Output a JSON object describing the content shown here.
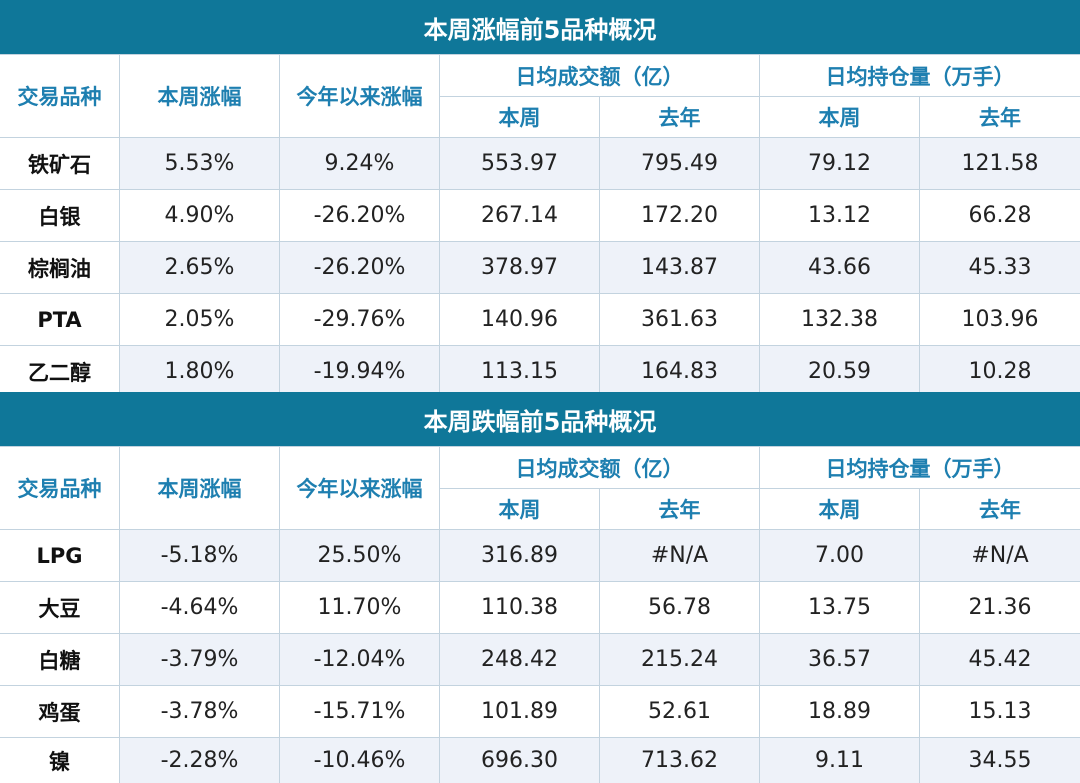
{
  "sections": [
    {
      "title": "本周涨幅前5品种概况",
      "headers": {
        "item": "交易品种",
        "weekly_change": "本周涨幅",
        "ytd_change": "今年以来涨幅",
        "turnover_group": "日均成交额（亿）",
        "open_interest_group": "日均持仓量（万手）",
        "this_week": "本周",
        "last_year": "去年"
      },
      "rows": [
        {
          "name": "铁矿石",
          "values": [
            "5.53%",
            "9.24%",
            "553.97",
            "795.49",
            "79.12",
            "121.58"
          ]
        },
        {
          "name": "白银",
          "values": [
            "4.90%",
            "-26.20%",
            "267.14",
            "172.20",
            "13.12",
            "66.28"
          ]
        },
        {
          "name": "棕榈油",
          "values": [
            "2.65%",
            "-26.20%",
            "378.97",
            "143.87",
            "43.66",
            "45.33"
          ]
        },
        {
          "name": "PTA",
          "values": [
            "2.05%",
            "-29.76%",
            "140.96",
            "361.63",
            "132.38",
            "103.96"
          ]
        },
        {
          "name": "乙二醇",
          "values": [
            "1.80%",
            "-19.94%",
            "113.15",
            "164.83",
            "20.59",
            "10.28"
          ]
        }
      ]
    },
    {
      "title": "本周跌幅前5品种概况",
      "headers": {
        "item": "交易品种",
        "weekly_change": "本周涨幅",
        "ytd_change": "今年以来涨幅",
        "turnover_group": "日均成交额（亿）",
        "open_interest_group": "日均持仓量（万手）",
        "this_week": "本周",
        "last_year": "去年"
      },
      "rows": [
        {
          "name": "LPG",
          "values": [
            "-5.18%",
            "25.50%",
            "316.89",
            "#N/A",
            "7.00",
            "#N/A"
          ]
        },
        {
          "name": "大豆",
          "values": [
            "-4.64%",
            "11.70%",
            "110.38",
            "56.78",
            "13.75",
            "21.36"
          ]
        },
        {
          "name": "白糖",
          "values": [
            "-3.79%",
            "-12.04%",
            "248.42",
            "215.24",
            "36.57",
            "45.42"
          ]
        },
        {
          "name": "鸡蛋",
          "values": [
            "-3.78%",
            "-15.71%",
            "101.89",
            "52.61",
            "18.89",
            "15.13"
          ]
        },
        {
          "name": "镍",
          "values": [
            "-2.28%",
            "-10.46%",
            "696.30",
            "713.62",
            "9.11",
            "34.55"
          ]
        }
      ]
    }
  ]
}
